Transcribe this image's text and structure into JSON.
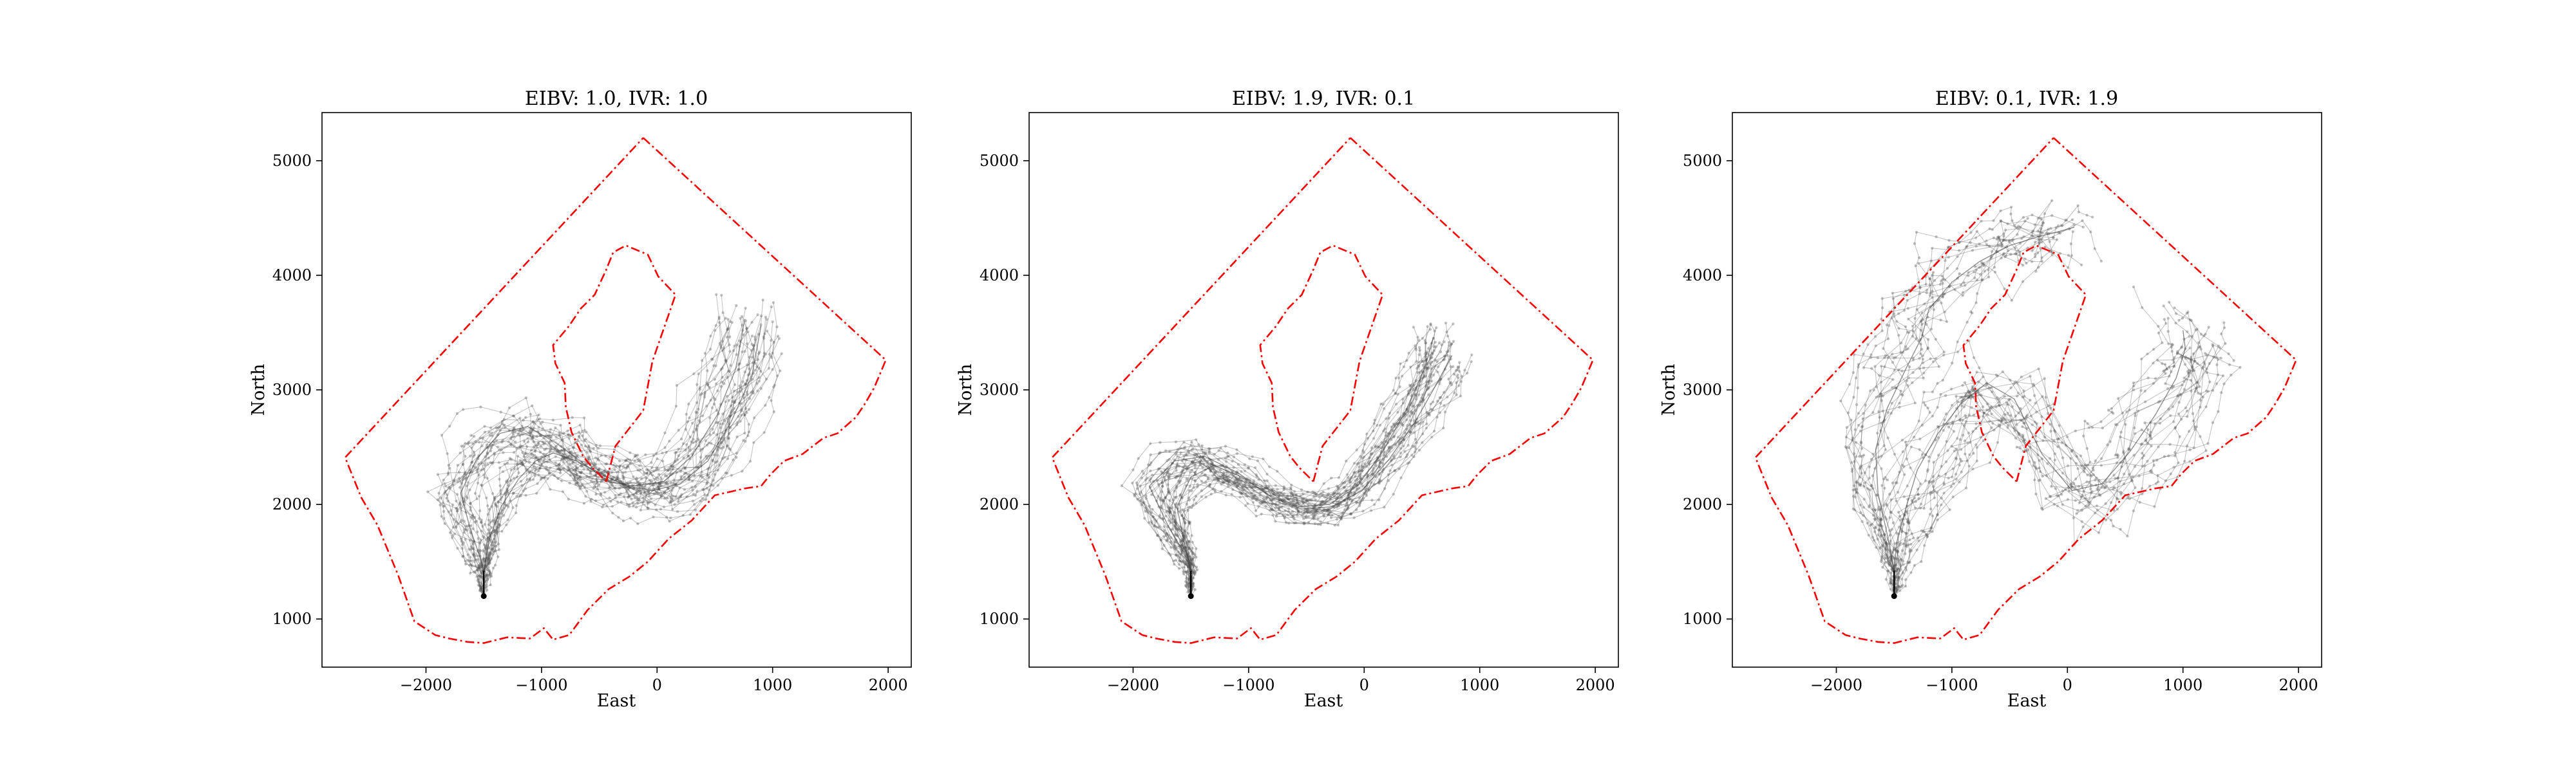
{
  "figure": {
    "background": "#ffffff",
    "boundary_color": "#ff0000",
    "trajectory_color": "#555555"
  },
  "chart_data": [
    {
      "type": "line",
      "title": "EIBV: 1.0, IVR: 1.0",
      "xlabel": "East",
      "ylabel": "North",
      "xlim": [
        -2900,
        2200
      ],
      "ylim": [
        580,
        5420
      ],
      "xticks": [
        -2000,
        -1000,
        0,
        1000,
        2000
      ],
      "yticks": [
        1000,
        2000,
        3000,
        4000,
        5000
      ],
      "xtick_labels": [
        "−2000",
        "−1000",
        "0",
        "1000",
        "2000"
      ],
      "ytick_labels": [
        "1000",
        "2000",
        "3000",
        "4000",
        "5000"
      ],
      "grid": false,
      "start_point": [
        -1500,
        1200
      ],
      "trajectory_spread": "mid",
      "series": [
        {
          "style": "boundary-outer",
          "x": [
            -120,
            1980,
            1880,
            1800,
            1720,
            1560,
            1440,
            1260,
            1100,
            980,
            900,
            760,
            500,
            300,
            100,
            -80,
            -240,
            -420,
            -600,
            -760,
            -900,
            -980,
            -1100,
            -1300,
            -1500,
            -1640,
            -1800,
            -1920,
            -2100,
            -2240,
            -2420,
            -2560,
            -2700,
            -120
          ],
          "y": [
            5200,
            3260,
            3020,
            2880,
            2760,
            2620,
            2580,
            2440,
            2380,
            2260,
            2160,
            2140,
            2080,
            1860,
            1700,
            1500,
            1370,
            1260,
            1080,
            860,
            820,
            920,
            830,
            840,
            790,
            800,
            830,
            860,
            980,
            1380,
            1820,
            2060,
            2410,
            5200
          ]
        },
        {
          "style": "boundary-inner",
          "x": [
            -440,
            -360,
            -120,
            -40,
            160,
            10,
            -80,
            -270,
            -380,
            -440,
            -540,
            -660,
            -760,
            -900,
            -880,
            -800,
            -790,
            -740,
            -640,
            -560,
            -440
          ],
          "y": [
            2200,
            2510,
            2820,
            3250,
            3830,
            3990,
            4180,
            4260,
            4200,
            4050,
            3830,
            3710,
            3560,
            3390,
            3230,
            3060,
            2850,
            2630,
            2420,
            2320,
            2200
          ]
        },
        {
          "style": "trajectory-mean",
          "x": [
            -1500,
            -1500,
            -1540,
            -1620,
            -1700,
            -1560,
            -1360,
            -1120,
            -880,
            -640,
            -420,
            -200,
            60,
            300,
            520,
            680,
            760
          ],
          "y": [
            1200,
            1420,
            1560,
            1800,
            2100,
            2400,
            2620,
            2680,
            2540,
            2360,
            2200,
            2160,
            2200,
            2420,
            2780,
            3180,
            3620
          ]
        },
        {
          "style": "trajectory-swarm",
          "x": [
            -1500,
            -1450,
            -1350,
            -1200,
            -1050,
            -900,
            -700,
            -480,
            -260,
            -40,
            200,
            440,
            640,
            820,
            900
          ],
          "y": [
            1420,
            1700,
            1980,
            2220,
            2380,
            2450,
            2380,
            2260,
            2160,
            2120,
            2180,
            2380,
            2720,
            3120,
            3560
          ]
        }
      ]
    },
    {
      "type": "line",
      "title": "EIBV: 1.9, IVR: 0.1",
      "xlabel": "East",
      "ylabel": "North",
      "xlim": [
        -2900,
        2200
      ],
      "ylim": [
        580,
        5420
      ],
      "xticks": [
        -2000,
        -1000,
        0,
        1000,
        2000
      ],
      "yticks": [
        1000,
        2000,
        3000,
        4000,
        5000
      ],
      "xtick_labels": [
        "−2000",
        "−1000",
        "0",
        "1000",
        "2000"
      ],
      "ytick_labels": [
        "1000",
        "2000",
        "3000",
        "4000",
        "5000"
      ],
      "grid": false,
      "start_point": [
        -1500,
        1200
      ],
      "trajectory_spread": "narrow",
      "series": [
        {
          "style": "boundary-outer",
          "x": [
            -120,
            1980,
            1880,
            1800,
            1720,
            1560,
            1440,
            1260,
            1100,
            980,
            900,
            760,
            500,
            300,
            100,
            -80,
            -240,
            -420,
            -600,
            -760,
            -900,
            -980,
            -1100,
            -1300,
            -1500,
            -1640,
            -1800,
            -1920,
            -2100,
            -2240,
            -2420,
            -2560,
            -2700,
            -120
          ],
          "y": [
            5200,
            3260,
            3020,
            2880,
            2760,
            2620,
            2580,
            2440,
            2380,
            2260,
            2160,
            2140,
            2080,
            1860,
            1700,
            1500,
            1370,
            1260,
            1080,
            860,
            820,
            920,
            830,
            840,
            790,
            800,
            830,
            860,
            980,
            1380,
            1820,
            2060,
            2410,
            5200
          ]
        },
        {
          "style": "boundary-inner",
          "x": [
            -440,
            -360,
            -120,
            -40,
            160,
            10,
            -80,
            -270,
            -380,
            -440,
            -540,
            -660,
            -760,
            -900,
            -880,
            -800,
            -790,
            -740,
            -640,
            -560,
            -440
          ],
          "y": [
            2200,
            2510,
            2820,
            3250,
            3830,
            3990,
            4180,
            4260,
            4200,
            4050,
            3830,
            3710,
            3560,
            3390,
            3230,
            3060,
            2850,
            2630,
            2420,
            2320,
            2200
          ]
        },
        {
          "style": "trajectory-mean",
          "x": [
            -1500,
            -1500,
            -1560,
            -1700,
            -1860,
            -1640,
            -1380,
            -1100,
            -820,
            -560,
            -300,
            -60,
            160,
            360,
            520,
            600
          ],
          "y": [
            1200,
            1420,
            1580,
            1820,
            2160,
            2380,
            2420,
            2280,
            2080,
            1980,
            2000,
            2160,
            2460,
            2820,
            3180,
            3460
          ]
        },
        {
          "style": "trajectory-swarm",
          "x": [
            -1500,
            -1560,
            -1620,
            -1500,
            -1300,
            -1060,
            -800,
            -540,
            -280,
            -20,
            220,
            440,
            620,
            760
          ],
          "y": [
            1420,
            1680,
            1980,
            2240,
            2340,
            2240,
            2060,
            1960,
            1980,
            2120,
            2400,
            2720,
            3040,
            3300
          ]
        }
      ]
    },
    {
      "type": "line",
      "title": "EIBV: 0.1, IVR: 1.9",
      "xlabel": "East",
      "ylabel": "North",
      "xlim": [
        -2900,
        2200
      ],
      "ylim": [
        580,
        5420
      ],
      "xticks": [
        -2000,
        -1000,
        0,
        1000,
        2000
      ],
      "yticks": [
        1000,
        2000,
        3000,
        4000,
        5000
      ],
      "xtick_labels": [
        "−2000",
        "−1000",
        "0",
        "1000",
        "2000"
      ],
      "ytick_labels": [
        "1000",
        "2000",
        "3000",
        "4000",
        "5000"
      ],
      "grid": false,
      "start_point": [
        -1500,
        1200
      ],
      "trajectory_spread": "wide",
      "series": [
        {
          "style": "boundary-outer",
          "x": [
            -120,
            1980,
            1880,
            1800,
            1720,
            1560,
            1440,
            1260,
            1100,
            980,
            900,
            760,
            500,
            300,
            100,
            -80,
            -240,
            -420,
            -600,
            -760,
            -900,
            -980,
            -1100,
            -1300,
            -1500,
            -1640,
            -1800,
            -1920,
            -2100,
            -2240,
            -2420,
            -2560,
            -2700,
            -120
          ],
          "y": [
            5200,
            3260,
            3020,
            2880,
            2760,
            2620,
            2580,
            2440,
            2380,
            2260,
            2160,
            2140,
            2080,
            1860,
            1700,
            1500,
            1370,
            1260,
            1080,
            860,
            820,
            920,
            830,
            840,
            790,
            800,
            830,
            860,
            980,
            1380,
            1820,
            2060,
            2410,
            5200
          ]
        },
        {
          "style": "boundary-inner",
          "x": [
            -440,
            -360,
            -120,
            -40,
            160,
            10,
            -80,
            -270,
            -380,
            -440,
            -540,
            -660,
            -760,
            -900,
            -880,
            -800,
            -790,
            -740,
            -640,
            -560,
            -440
          ],
          "y": [
            2200,
            2510,
            2820,
            3250,
            3830,
            3990,
            4180,
            4260,
            4200,
            4050,
            3830,
            3710,
            3560,
            3390,
            3230,
            3060,
            2850,
            2630,
            2420,
            2320,
            2200
          ]
        },
        {
          "style": "trajectory-mean",
          "x": [
            -1500,
            -1500,
            -1480,
            -1400,
            -1300,
            -1120,
            -920,
            -700,
            -460,
            -220,
            40,
            300,
            540,
            760,
            940,
            1020,
            1000
          ],
          "y": [
            1200,
            1420,
            1660,
            1960,
            2300,
            2620,
            2880,
            3060,
            2920,
            2440,
            2120,
            2180,
            2460,
            2780,
            3100,
            3360,
            3520
          ]
        },
        {
          "style": "trajectory-swarm",
          "x": [
            -1500,
            -1560,
            -1640,
            -1660,
            -1560,
            -1400,
            -1260,
            -1200,
            -1000,
            -760,
            -500,
            -240,
            -80,
            60
          ],
          "y": [
            1420,
            1740,
            2100,
            2480,
            2840,
            3180,
            3460,
            3700,
            3940,
            4120,
            4260,
            4340,
            4380,
            4420
          ]
        }
      ]
    }
  ]
}
